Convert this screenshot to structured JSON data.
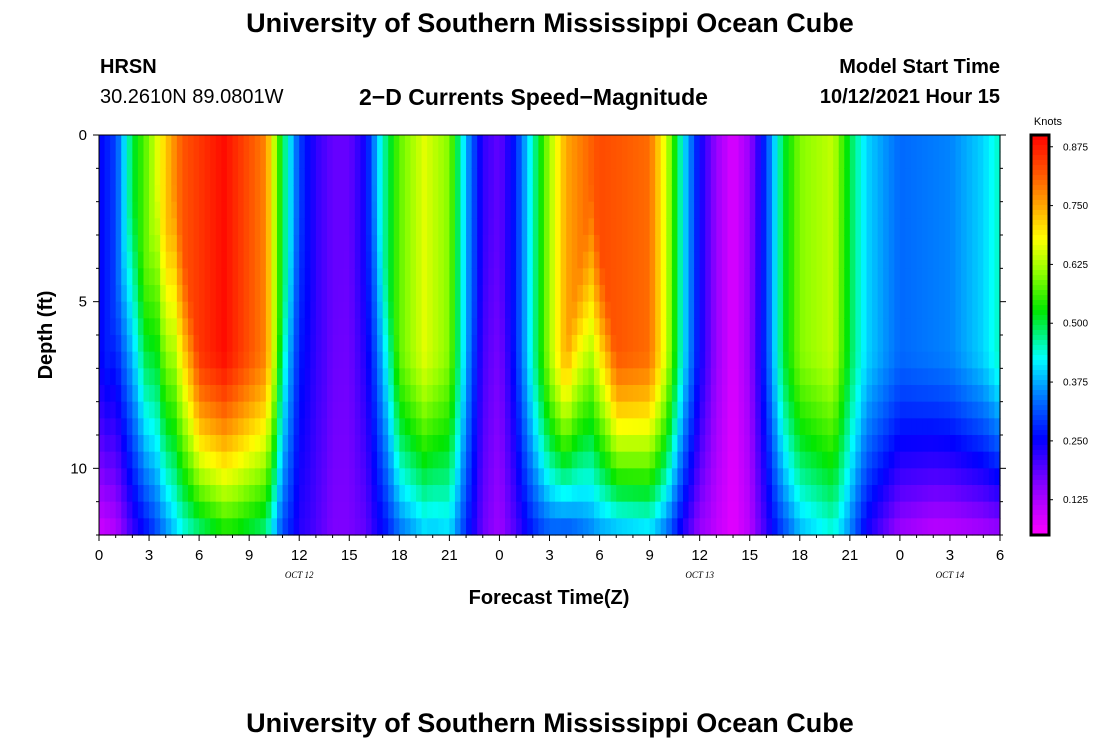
{
  "header": {
    "title_top": "University of Southern Mississippi Ocean Cube",
    "title_bottom": "University of Southern Mississippi Ocean Cube",
    "station": "HRSN",
    "coords": "30.2610N  89.0801W",
    "plot_title": "2−D Currents Speed−Magnitude",
    "model_start_label": "Model Start Time",
    "model_start_value": "10/12/2021 Hour 15"
  },
  "chart_data": {
    "type": "heatmap",
    "title": "2-D Currents Speed-Magnitude",
    "xlabel": "Forecast Time(Z)",
    "ylabel": "Depth (ft)",
    "x_hours_range": [
      0,
      54
    ],
    "x_tick_labels": [
      "0",
      "3",
      "6",
      "9",
      "12",
      "15",
      "18",
      "21",
      "0",
      "3",
      "6",
      "9",
      "12",
      "15",
      "18",
      "21",
      "0",
      "3",
      "6"
    ],
    "date_labels": [
      {
        "text": "OCT 12",
        "hour": 12
      },
      {
        "text": "OCT 13",
        "hour": 36
      },
      {
        "text": "OCT 14",
        "hour": 51
      }
    ],
    "ylim": [
      0,
      12
    ],
    "y_ticks": [
      0,
      5,
      10
    ],
    "y_minor_step": 1,
    "colorbar": {
      "label": "Knots",
      "min": 0.05,
      "max": 0.9,
      "ticks": [
        "0.875",
        "0.750",
        "0.625",
        "0.500",
        "0.375",
        "0.250",
        "0.125"
      ],
      "tick_values": [
        0.875,
        0.75,
        0.625,
        0.5,
        0.375,
        0.25,
        0.125
      ]
    },
    "profiles": {
      "peak_surface": [
        {
          "hour": 0,
          "v": 0.25
        },
        {
          "hour": 1,
          "v": 0.3
        },
        {
          "hour": 2,
          "v": 0.5
        },
        {
          "hour": 3,
          "v": 0.6
        },
        {
          "hour": 4,
          "v": 0.72
        },
        {
          "hour": 5,
          "v": 0.82
        },
        {
          "hour": 7.5,
          "v": 0.89
        },
        {
          "hour": 10,
          "v": 0.78
        },
        {
          "hour": 11,
          "v": 0.5
        },
        {
          "hour": 12,
          "v": 0.3
        },
        {
          "hour": 13,
          "v": 0.22
        },
        {
          "hour": 14,
          "v": 0.18
        },
        {
          "hour": 15,
          "v": 0.18
        },
        {
          "hour": 16,
          "v": 0.25
        },
        {
          "hour": 17,
          "v": 0.45
        },
        {
          "hour": 18,
          "v": 0.58
        },
        {
          "hour": 19.5,
          "v": 0.66
        },
        {
          "hour": 21,
          "v": 0.6
        },
        {
          "hour": 22,
          "v": 0.38
        },
        {
          "hour": 23,
          "v": 0.22
        },
        {
          "hour": 24,
          "v": 0.18
        },
        {
          "hour": 25,
          "v": 0.28
        },
        {
          "hour": 26,
          "v": 0.45
        },
        {
          "hour": 27,
          "v": 0.62
        },
        {
          "hour": 28,
          "v": 0.75
        },
        {
          "hour": 30,
          "v": 0.83
        },
        {
          "hour": 33,
          "v": 0.8
        },
        {
          "hour": 34,
          "v": 0.65
        },
        {
          "hour": 35,
          "v": 0.42
        },
        {
          "hour": 36,
          "v": 0.25
        },
        {
          "hour": 37,
          "v": 0.14
        },
        {
          "hour": 38,
          "v": 0.08
        },
        {
          "hour": 39,
          "v": 0.14
        },
        {
          "hour": 40,
          "v": 0.3
        },
        {
          "hour": 41,
          "v": 0.5
        },
        {
          "hour": 42,
          "v": 0.6
        },
        {
          "hour": 44,
          "v": 0.64
        },
        {
          "hour": 45,
          "v": 0.5
        },
        {
          "hour": 46,
          "v": 0.4
        },
        {
          "hour": 48,
          "v": 0.33
        },
        {
          "hour": 51,
          "v": 0.35
        },
        {
          "hour": 53,
          "v": 0.4
        },
        {
          "hour": 54,
          "v": 0.45
        }
      ],
      "bottom_ratio": [
        {
          "hour": 0,
          "v": 0.35
        },
        {
          "hour": 6,
          "v": 0.55
        },
        {
          "hour": 8,
          "v": 0.6
        },
        {
          "hour": 11,
          "v": 0.6
        },
        {
          "hour": 13,
          "v": 0.9
        },
        {
          "hour": 15,
          "v": 0.9
        },
        {
          "hour": 17,
          "v": 0.55
        },
        {
          "hour": 20,
          "v": 0.6
        },
        {
          "hour": 23,
          "v": 0.8
        },
        {
          "hour": 25,
          "v": 0.7
        },
        {
          "hour": 28,
          "v": 0.4
        },
        {
          "hour": 31,
          "v": 0.45
        },
        {
          "hour": 36,
          "v": 0.55
        },
        {
          "hour": 38,
          "v": 0.9
        },
        {
          "hour": 41,
          "v": 0.6
        },
        {
          "hour": 45,
          "v": 0.7
        },
        {
          "hour": 48,
          "v": 0.4
        },
        {
          "hour": 50,
          "v": 0.3
        },
        {
          "hour": 54,
          "v": 0.3
        }
      ],
      "decay_onset_depth_ft": 6.5,
      "ramp_hours": [
        2,
        3.5,
        4.5,
        12,
        15,
        16.5,
        23.5,
        29.5
      ]
    }
  }
}
